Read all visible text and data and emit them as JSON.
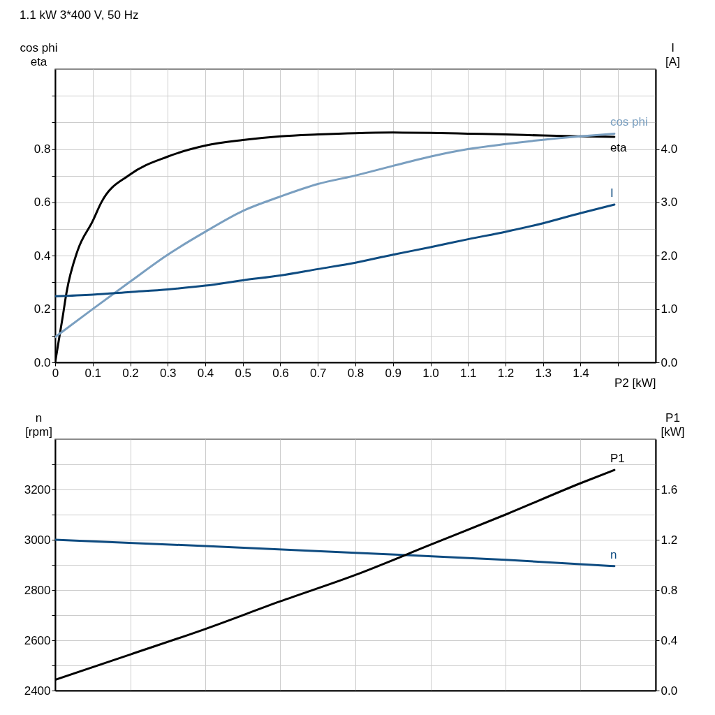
{
  "chart_data": [
    {
      "type": "line",
      "title": "1.1 kW   3*400 V, 50 Hz",
      "xlabel": "P2 [kW]",
      "ylabel": "cos phi\neta",
      "y2label": "I\n[A]",
      "grid": true,
      "legend": false,
      "xlim": [
        0,
        1.6
      ],
      "xticks": [
        0,
        0.1,
        0.2,
        0.3,
        0.4,
        0.5,
        0.6,
        0.7,
        0.8,
        0.9,
        {
          "value": 1,
          "label": "1.0"
        },
        1.1,
        1.2,
        1.3,
        1.4,
        {
          "value": 1.5,
          "label": null
        }
      ],
      "ylim": [
        0,
        1.1
      ],
      "yticks": [
        {
          "value": 0,
          "label": "0.0"
        },
        {
          "value": 0.1,
          "label": null
        },
        0.2,
        {
          "value": 0.3,
          "label": null
        },
        0.4,
        {
          "value": 0.5,
          "label": null
        },
        0.6,
        {
          "value": 0.7,
          "label": null
        },
        0.8,
        {
          "value": 0.9,
          "label": null
        },
        {
          "value": 1,
          "label": null
        }
      ],
      "y2lim": [
        0,
        5.5
      ],
      "y2ticks": [
        {
          "value": 0,
          "label": "0.0"
        },
        {
          "value": 1,
          "label": "1.0"
        },
        {
          "value": 2,
          "label": "2.0"
        },
        {
          "value": 3,
          "label": "3.0"
        },
        {
          "value": 4,
          "label": "4.0"
        }
      ],
      "series": [
        {
          "name": "eta",
          "color": "#000000",
          "x": [
            0,
            0.02,
            0.03,
            0.06,
            0.1,
            0.123,
            0.2,
            0.3,
            0.4,
            0.5,
            0.6,
            0.7,
            0.8,
            0.9,
            1.0,
            1.1,
            1.2,
            1.3,
            1.4,
            1.49
          ],
          "values": [
            0,
            0.17,
            0.26,
            0.42,
            0.53,
            0.6,
            0.705,
            0.772,
            0.813,
            0.834,
            0.848,
            0.855,
            0.86,
            0.862,
            0.861,
            0.858,
            0.855,
            0.851,
            0.848,
            0.846
          ]
        },
        {
          "name": "cos phi",
          "color": "#7a9fc0",
          "x": [
            0,
            0.1,
            0.2,
            0.3,
            0.4,
            0.5,
            0.6,
            0.7,
            0.8,
            0.9,
            1.0,
            1.1,
            1.2,
            1.3,
            1.4,
            1.49
          ],
          "values": [
            0.095,
            0.2,
            0.303,
            0.404,
            0.49,
            0.568,
            0.622,
            0.669,
            0.701,
            0.737,
            0.772,
            0.8,
            0.819,
            0.835,
            0.848,
            0.858
          ]
        },
        {
          "name": "I",
          "color": "#0f4c81",
          "axis": "y2",
          "x": [
            0,
            0.1,
            0.2,
            0.3,
            0.4,
            0.5,
            0.6,
            0.7,
            0.8,
            0.9,
            1.0,
            1.1,
            1.2,
            1.3,
            1.4,
            1.49
          ],
          "values": [
            1.24,
            1.27,
            1.32,
            1.37,
            1.44,
            1.54,
            1.63,
            1.75,
            1.87,
            2.02,
            2.16,
            2.31,
            2.45,
            2.61,
            2.8,
            2.96
          ]
        }
      ]
    },
    {
      "type": "line",
      "ylabel": "n\n[rpm]",
      "y2label": "P1\n[kW]",
      "grid": true,
      "legend": false,
      "tick_labels": "y",
      "xlim": [
        0,
        1.6
      ],
      "xticks": [
        0,
        0.2,
        0.4,
        0.6,
        0.8,
        1.0,
        1.2,
        1.4
      ],
      "ylim": [
        2400,
        3400
      ],
      "yticks": [
        2400,
        {
          "value": 2500,
          "label": null
        },
        2600,
        {
          "value": 2700,
          "label": null
        },
        2800,
        {
          "value": 2900,
          "label": null
        },
        3000,
        {
          "value": 3100,
          "label": null
        },
        3200,
        {
          "value": 3300,
          "label": null
        }
      ],
      "y2lim": [
        0,
        2.0
      ],
      "y2ticks": [
        {
          "value": 0,
          "label": "0.0"
        },
        0.4,
        0.8,
        1.2,
        1.6
      ],
      "series": [
        {
          "name": "n",
          "color": "#0f4c81",
          "x": [
            0,
            0.4,
            0.8,
            1.2,
            1.49
          ],
          "values": [
            3000,
            2975,
            2948,
            2920,
            2895
          ]
        },
        {
          "name": "P1",
          "color": "#000000",
          "axis": "y2",
          "x": [
            0,
            0.2,
            0.4,
            0.6,
            0.8,
            1.0,
            1.2,
            1.4,
            1.49
          ],
          "values": [
            0.085,
            0.287,
            0.49,
            0.71,
            0.92,
            1.16,
            1.4,
            1.65,
            1.755
          ]
        }
      ]
    }
  ]
}
